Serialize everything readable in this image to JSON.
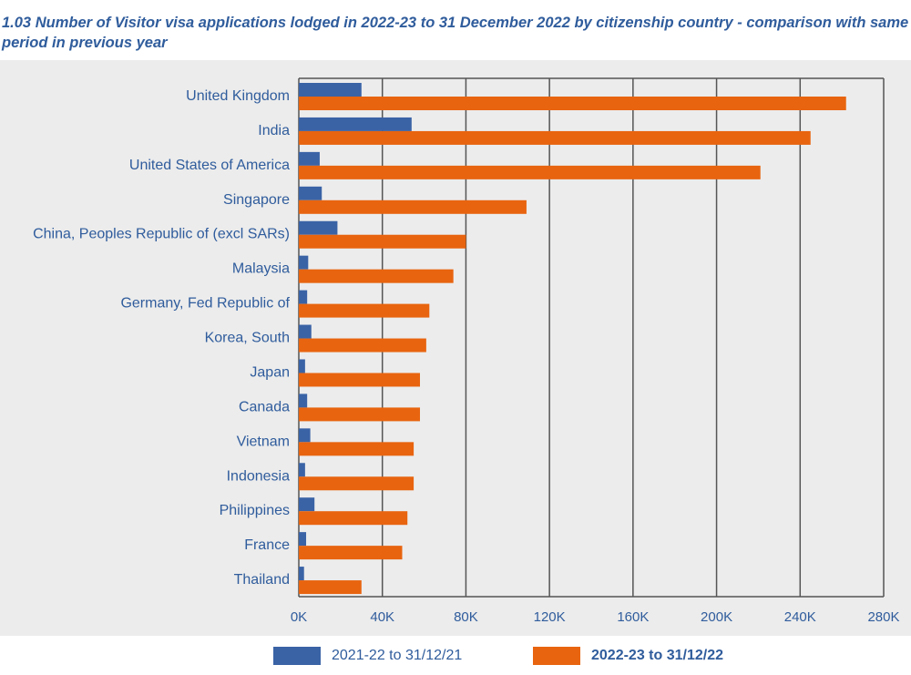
{
  "header": {
    "title": "1.03 Number of Visitor visa applications lodged in 2022-23 to 31 December 2022 by citizenship country - comparison with same period in previous year"
  },
  "colors": {
    "series_prev": "#3a63a6",
    "series_curr": "#e8640f",
    "plot_bg": "#ececec",
    "text": "#2f5c9c",
    "grid": "#555555"
  },
  "chart_data": {
    "type": "bar",
    "orientation": "horizontal",
    "title": "1.03 Number of Visitor visa applications lodged in 2022-23 to 31 December 2022 by citizenship country - comparison with same period in previous year",
    "categories": [
      "United Kingdom",
      "India",
      "United States of America",
      "Singapore",
      "China, Peoples Republic of (excl SARs)",
      "Malaysia",
      "Germany, Fed Republic of",
      "Korea, South",
      "Japan",
      "Canada",
      "Vietnam",
      "Indonesia",
      "Philippines",
      "France",
      "Thailand"
    ],
    "series": [
      {
        "name": "2021-22 to 31/12/21",
        "values": [
          30000,
          54000,
          10000,
          11000,
          18500,
          4500,
          4000,
          6000,
          3000,
          4000,
          5500,
          3000,
          7500,
          3500,
          2500
        ]
      },
      {
        "name": "2022-23 to 31/12/22",
        "values": [
          262000,
          245000,
          221000,
          109000,
          80000,
          74000,
          62500,
          61000,
          58000,
          58000,
          55000,
          55000,
          52000,
          49500,
          30000
        ]
      }
    ],
    "xlim": [
      0,
      280000
    ],
    "xticks": [
      "0K",
      "40K",
      "80K",
      "120K",
      "160K",
      "200K",
      "240K",
      "280K"
    ],
    "xlabel": "",
    "ylabel": "",
    "grid": true,
    "legend_position": "bottom"
  }
}
